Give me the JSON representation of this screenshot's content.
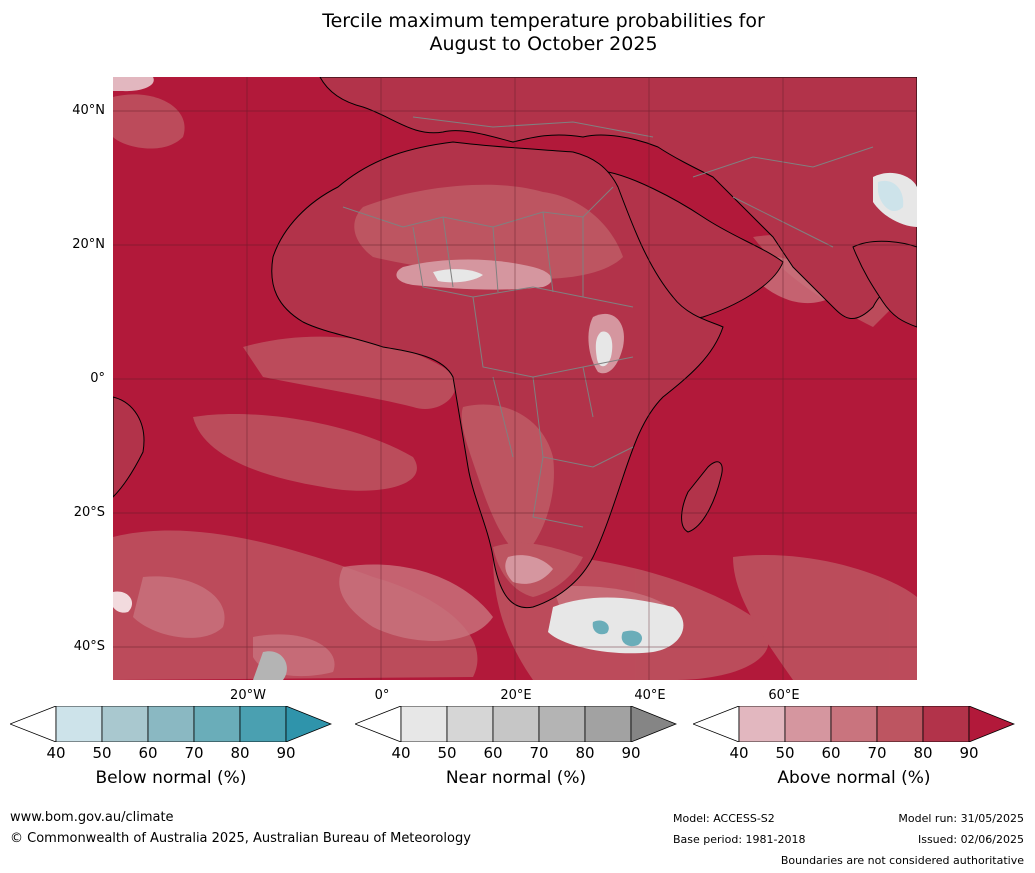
{
  "title_line1": "Tercile maximum temperature probabilities for",
  "title_line2": "August to October 2025",
  "map": {
    "lat_labels": [
      "40°N",
      "20°N",
      "0°",
      "20°S",
      "40°S"
    ],
    "lon_labels": [
      "20°W",
      "0°",
      "20°E",
      "40°E",
      "60°E"
    ],
    "colors": {
      "ocean": "#b2193a",
      "coast": "#000000",
      "borders": "#808080"
    }
  },
  "colorbars": [
    {
      "label": "Below normal (%)",
      "ticks": [
        "40",
        "50",
        "60",
        "70",
        "80",
        "90"
      ],
      "colors": [
        "#ffffff",
        "#cde3ea",
        "#a9c8cf",
        "#8ab8c2",
        "#6aadb9",
        "#4aa0b1",
        "#2f94ab"
      ]
    },
    {
      "label": "Near normal (%)",
      "ticks": [
        "40",
        "50",
        "60",
        "70",
        "80",
        "90"
      ],
      "colors": [
        "#ffffff",
        "#e7e7e7",
        "#d6d6d6",
        "#c6c6c6",
        "#b4b4b4",
        "#a2a2a2",
        "#858585"
      ]
    },
    {
      "label": "Above normal (%)",
      "ticks": [
        "40",
        "50",
        "60",
        "70",
        "80",
        "90"
      ],
      "colors": [
        "#ffffff",
        "#e2b7bf",
        "#d5969f",
        "#c9747e",
        "#bd5561",
        "#b2334a",
        "#b2193a"
      ]
    }
  ],
  "footer": {
    "website": "www.bom.gov.au/climate",
    "copyright": "© Commonwealth of Australia 2025, Australian Bureau of Meteorology",
    "model": "Model: ACCESS-S2",
    "base_period": "Base period: 1981-2018",
    "model_run": "Model run: 31/05/2025",
    "issued": "Issued: 02/06/2025",
    "disclaimer": "Boundaries are not considered authoritative"
  }
}
